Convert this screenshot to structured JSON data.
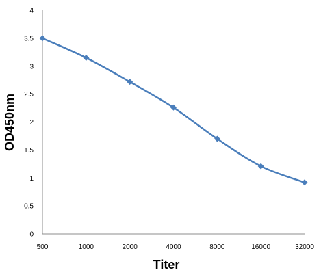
{
  "chart_data": {
    "type": "line",
    "title": "",
    "xlabel": "Titer",
    "ylabel": "OD450nm",
    "categories": [
      "500",
      "1000",
      "2000",
      "4000",
      "8000",
      "16000",
      "32000"
    ],
    "series": [
      {
        "values": [
          3.5,
          3.15,
          2.72,
          2.26,
          1.7,
          1.21,
          0.92
        ],
        "color": "#4a7ebb",
        "marker": "diamond"
      }
    ],
    "ylim": [
      0,
      4
    ],
    "yticks": [
      "0",
      "0.5",
      "1",
      "1.5",
      "2",
      "2.5",
      "3",
      "3.5",
      "4"
    ],
    "grid": false,
    "legend": "none"
  }
}
